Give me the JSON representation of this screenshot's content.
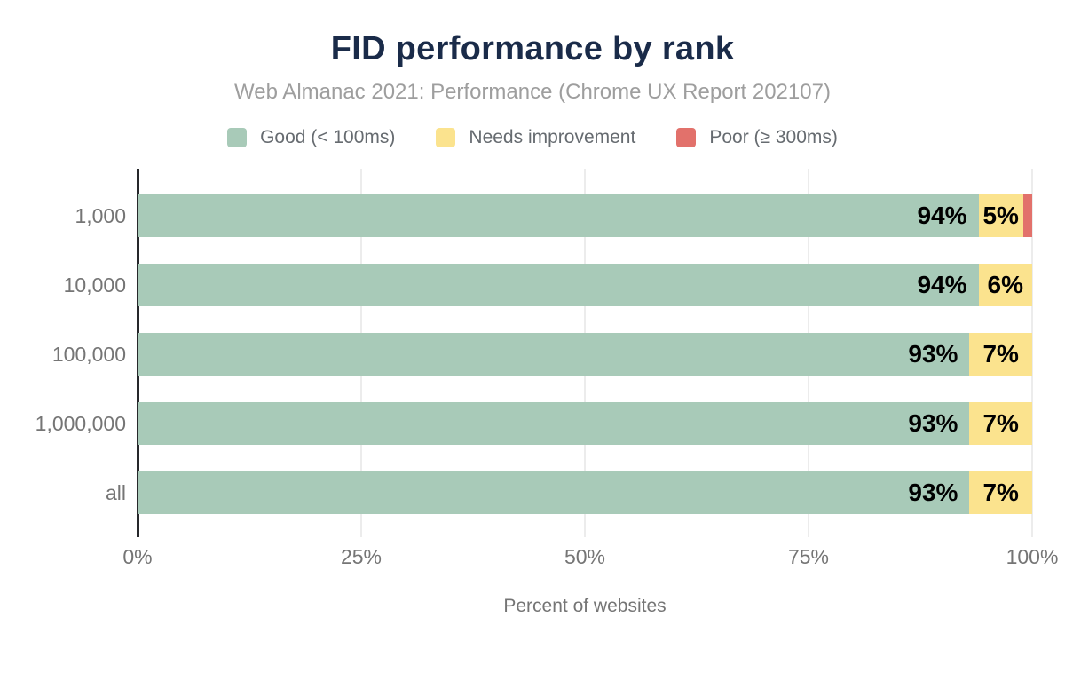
{
  "header": {
    "title": "FID performance by rank",
    "subtitle": "Web Almanac 2021: Performance (Chrome UX Report 202107)"
  },
  "colors": {
    "good": "#a8cab8",
    "needs_improvement": "#fbe38e",
    "poor": "#e2716b",
    "title_text": "#1a2b49",
    "subtitle_text": "#9e9e9e",
    "axis_text": "#757575",
    "legend_text": "#666b70",
    "gridline": "#ececec",
    "axis_line": "#26282b",
    "data_label": "#000000"
  },
  "chart_data": {
    "type": "bar",
    "orientation": "horizontal",
    "stacked": true,
    "title": "FID performance by rank",
    "subtitle": "Web Almanac 2021: Performance (Chrome UX Report 202107)",
    "categories": [
      "1,000",
      "10,000",
      "100,000",
      "1,000,000",
      "all"
    ],
    "series": [
      {
        "name": "Good (< 100ms)",
        "color": "#a8cab8",
        "values": [
          94,
          94,
          93,
          93,
          93
        ]
      },
      {
        "name": "Needs improvement",
        "color": "#fbe38e",
        "values": [
          5,
          6,
          7,
          7,
          7
        ]
      },
      {
        "name": "Poor (≥ 300ms)",
        "color": "#e2716b",
        "values": [
          1,
          0,
          0,
          0,
          0
        ]
      }
    ],
    "xlabel": "Percent of websites",
    "ylabel": "",
    "x_ticks": [
      "0%",
      "25%",
      "50%",
      "75%",
      "100%"
    ],
    "xlim": [
      0,
      100
    ],
    "legend_position": "top",
    "grid": "vertical",
    "data_label_format": "{value}%",
    "data_label_min": 2
  }
}
